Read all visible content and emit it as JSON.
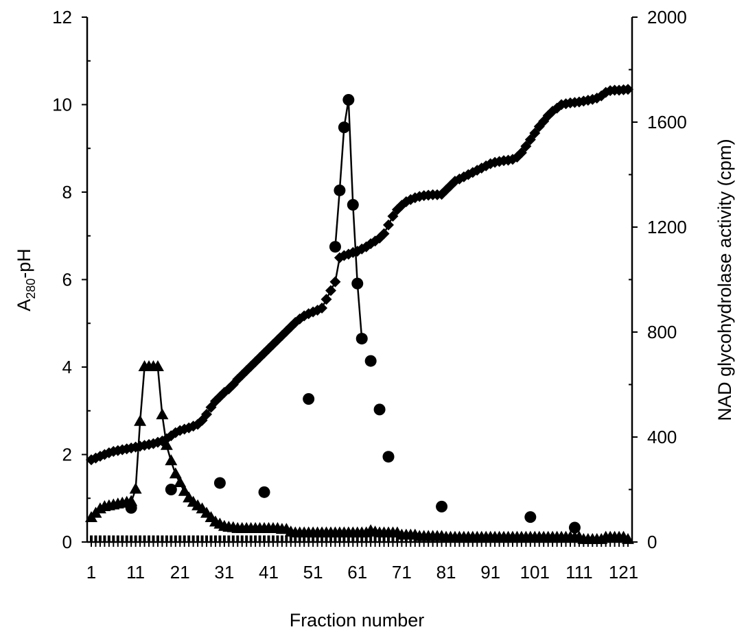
{
  "chart_data": {
    "type": "line",
    "xlabel": "Fraction number",
    "ylabel_left_main": "A",
    "ylabel_left_sub": "280",
    "ylabel_left_rest": "-pH",
    "ylabel_right": "NAD glycohydrolase activity (cpm)",
    "xlim": [
      1,
      122
    ],
    "ylim_left": [
      0,
      12
    ],
    "ylim_right": [
      0,
      2000
    ],
    "x_tick_labels": [
      "1",
      "11",
      "21",
      "31",
      "41",
      "51",
      "61",
      "71",
      "81",
      "91",
      "101",
      "111",
      "121"
    ],
    "y_left_tick_labels": [
      "0",
      "2",
      "4",
      "6",
      "8",
      "10",
      "12"
    ],
    "y_right_tick_labels": [
      "0",
      "400",
      "800",
      "1200",
      "1600",
      "2000"
    ],
    "series": [
      {
        "marker": "diamond",
        "axis": "left",
        "connected": true,
        "x": [
          1,
          2,
          3,
          4,
          5,
          6,
          7,
          8,
          9,
          10,
          11,
          12,
          13,
          14,
          15,
          16,
          17,
          18,
          19,
          20,
          21,
          22,
          23,
          24,
          25,
          26,
          27,
          28,
          29,
          30,
          31,
          32,
          33,
          34,
          35,
          36,
          37,
          38,
          39,
          40,
          41,
          42,
          43,
          44,
          45,
          46,
          47,
          48,
          49,
          50,
          51,
          52,
          53,
          54,
          55,
          56,
          57,
          58,
          59,
          60,
          61,
          62,
          63,
          64,
          65,
          66,
          67,
          68,
          69,
          70,
          71,
          72,
          73,
          74,
          75,
          76,
          77,
          78,
          79,
          80,
          81,
          82,
          83,
          84,
          85,
          86,
          87,
          88,
          89,
          90,
          91,
          92,
          93,
          94,
          95,
          96,
          97,
          98,
          99,
          100,
          101,
          102,
          103,
          104,
          105,
          106,
          107,
          108,
          109,
          110,
          111,
          112,
          113,
          114,
          115,
          116,
          117,
          118,
          119,
          120,
          121,
          122
        ],
        "values": [
          1.88,
          1.92,
          1.96,
          2.0,
          2.04,
          2.07,
          2.09,
          2.11,
          2.13,
          2.15,
          2.17,
          2.19,
          2.21,
          2.23,
          2.25,
          2.28,
          2.31,
          2.36,
          2.43,
          2.5,
          2.55,
          2.58,
          2.61,
          2.65,
          2.69,
          2.78,
          2.92,
          3.08,
          3.22,
          3.32,
          3.42,
          3.5,
          3.6,
          3.72,
          3.82,
          3.92,
          4.02,
          4.12,
          4.22,
          4.32,
          4.42,
          4.52,
          4.62,
          4.72,
          4.82,
          4.92,
          5.02,
          5.1,
          5.17,
          5.22,
          5.26,
          5.3,
          5.35,
          5.55,
          5.75,
          5.95,
          6.5,
          6.55,
          6.58,
          6.62,
          6.65,
          6.7,
          6.75,
          6.82,
          6.88,
          6.95,
          7.05,
          7.25,
          7.45,
          7.6,
          7.7,
          7.78,
          7.83,
          7.87,
          7.9,
          7.92,
          7.93,
          7.94,
          7.94,
          7.95,
          8.05,
          8.15,
          8.25,
          8.3,
          8.35,
          8.4,
          8.45,
          8.5,
          8.55,
          8.6,
          8.65,
          8.68,
          8.7,
          8.72,
          8.73,
          8.75,
          8.8,
          8.9,
          9.05,
          9.2,
          9.35,
          9.5,
          9.62,
          9.75,
          9.85,
          9.92,
          10.0,
          10.02,
          10.04,
          10.05,
          10.06,
          10.08,
          10.1,
          10.12,
          10.15,
          10.2,
          10.28,
          10.32,
          10.33,
          10.33,
          10.34,
          10.35
        ]
      },
      {
        "marker": "triangle",
        "axis": "left",
        "connected": true,
        "x": [
          1,
          2,
          3,
          4,
          5,
          6,
          7,
          8,
          9,
          10,
          11,
          12,
          13,
          14,
          15,
          16,
          17,
          18,
          19,
          20,
          21,
          22,
          23,
          24,
          25,
          26,
          27,
          28,
          29,
          30,
          31,
          32,
          33,
          34,
          35,
          36,
          37,
          38,
          39,
          40,
          41,
          42,
          43,
          44,
          45,
          46,
          47,
          48,
          49,
          50,
          51,
          52,
          53,
          54,
          55,
          56,
          57,
          58,
          59,
          60,
          61,
          62,
          63,
          64,
          65,
          66,
          67,
          68,
          69,
          70,
          71,
          72,
          73,
          74,
          75,
          76,
          77,
          78,
          79,
          80,
          81,
          82,
          83,
          84,
          85,
          86,
          87,
          88,
          89,
          90,
          91,
          92,
          93,
          94,
          95,
          96,
          97,
          98,
          99,
          100,
          101,
          102,
          103,
          104,
          105,
          106,
          107,
          108,
          109,
          110,
          111,
          112,
          113,
          114,
          115,
          116,
          117,
          118,
          119,
          120,
          121,
          122
        ],
        "values": [
          0.55,
          0.65,
          0.75,
          0.8,
          0.82,
          0.84,
          0.86,
          0.88,
          0.9,
          0.92,
          1.2,
          2.75,
          4.0,
          4.0,
          4.0,
          4.0,
          2.9,
          2.2,
          1.85,
          1.55,
          1.35,
          1.15,
          1.0,
          0.9,
          0.82,
          0.75,
          0.65,
          0.55,
          0.45,
          0.4,
          0.35,
          0.33,
          0.32,
          0.3,
          0.3,
          0.3,
          0.3,
          0.3,
          0.3,
          0.3,
          0.3,
          0.3,
          0.3,
          0.28,
          0.28,
          0.22,
          0.2,
          0.2,
          0.2,
          0.2,
          0.2,
          0.2,
          0.2,
          0.2,
          0.2,
          0.2,
          0.2,
          0.2,
          0.2,
          0.2,
          0.2,
          0.2,
          0.2,
          0.25,
          0.22,
          0.2,
          0.2,
          0.2,
          0.2,
          0.2,
          0.15,
          0.15,
          0.15,
          0.15,
          0.12,
          0.12,
          0.12,
          0.12,
          0.12,
          0.12,
          0.1,
          0.1,
          0.1,
          0.1,
          0.1,
          0.1,
          0.1,
          0.1,
          0.1,
          0.1,
          0.1,
          0.1,
          0.1,
          0.1,
          0.1,
          0.1,
          0.1,
          0.1,
          0.1,
          0.1,
          0.1,
          0.1,
          0.1,
          0.1,
          0.1,
          0.1,
          0.1,
          0.1,
          0.1,
          0.1,
          0.1,
          0.05,
          0.05,
          0.05,
          0.05,
          0.05,
          0.1,
          0.1,
          0.1,
          0.1,
          0.1,
          0.05
        ]
      },
      {
        "marker": "circle",
        "axis": "right",
        "connected_range": [
          56,
          62
        ],
        "x": [
          10,
          19,
          30,
          40,
          50,
          56,
          57,
          58,
          59,
          60,
          61,
          62,
          64,
          66,
          68,
          80,
          100,
          110
        ],
        "values": [
          130,
          200,
          225,
          190,
          545,
          1125,
          1340,
          1580,
          1685,
          1285,
          985,
          775,
          690,
          505,
          325,
          135,
          95,
          55
        ]
      },
      {
        "marker": "bar",
        "axis": "right",
        "x": [
          1,
          2,
          3,
          4,
          5,
          6,
          7,
          8,
          9,
          10,
          11,
          12,
          13,
          14,
          15,
          16,
          17,
          18,
          19,
          20,
          21,
          22,
          23,
          24,
          25,
          26,
          27,
          28,
          29,
          30,
          31,
          32,
          33,
          34,
          35,
          36,
          37,
          38,
          39,
          40,
          41,
          42,
          43,
          44,
          45,
          46,
          47,
          48,
          49,
          50,
          51,
          52,
          53,
          54,
          55,
          56,
          57,
          58,
          59,
          60,
          61,
          62,
          63,
          64,
          65,
          66,
          67,
          68,
          69,
          70,
          71,
          72,
          73,
          74,
          75,
          76,
          77,
          78,
          79,
          80,
          81,
          82,
          83,
          84,
          85,
          86,
          87,
          88,
          89,
          90,
          91,
          92,
          93,
          94,
          95,
          96,
          97,
          98,
          99,
          100,
          101,
          102,
          103,
          104,
          105,
          106,
          107,
          108,
          109,
          110,
          111,
          112,
          113,
          114,
          115,
          116,
          117,
          118,
          119,
          120,
          121,
          122
        ],
        "values": [
          25,
          25,
          25,
          25,
          25,
          25,
          25,
          25,
          25,
          25,
          25,
          25,
          25,
          25,
          25,
          25,
          25,
          25,
          25,
          25,
          25,
          25,
          25,
          25,
          25,
          25,
          25,
          25,
          25,
          25,
          25,
          25,
          25,
          25,
          25,
          25,
          25,
          25,
          25,
          25,
          25,
          25,
          25,
          25,
          25,
          25,
          25,
          25,
          25,
          25,
          25,
          25,
          25,
          25,
          25,
          25,
          25,
          25,
          25,
          25,
          25,
          25,
          25,
          25,
          25,
          25,
          25,
          25,
          25,
          25,
          25,
          25,
          25,
          25,
          25,
          25,
          25,
          25,
          25,
          25,
          25,
          25,
          25,
          25,
          25,
          25,
          25,
          25,
          25,
          25,
          25,
          25,
          25,
          25,
          25,
          25,
          25,
          25,
          25,
          25,
          25,
          25,
          25,
          25,
          25,
          25,
          25,
          25,
          25,
          25,
          25,
          25,
          25,
          25,
          25,
          25,
          25,
          25,
          25,
          25,
          25,
          25
        ]
      }
    ],
    "grid": false,
    "legend": "none"
  }
}
